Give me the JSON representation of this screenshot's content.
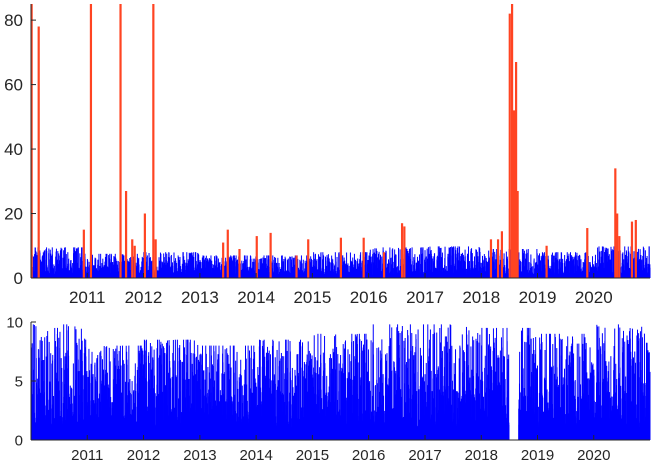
{
  "chart_data": [
    {
      "type": "bar",
      "x_type": "date",
      "xlim": [
        "2010-01-01",
        "2020-12-31"
      ],
      "ylim": [
        0,
        85
      ],
      "yticks": [
        0,
        20,
        40,
        60,
        80
      ],
      "xticks": [
        "2011",
        "2012",
        "2013",
        "2014",
        "2015",
        "2016",
        "2017",
        "2018",
        "2019",
        "2020"
      ],
      "grid": false,
      "baseline_color": "#0000ff",
      "baseline_max": 10,
      "series": [
        {
          "color": "#0000ff",
          "values": [
            [
              [
                "2010-01-01",
                "2010-12-31"
              ],
              9.5
            ],
            [
              [
                "2011-01-01",
                "2011-12-31"
              ],
              7.5
            ],
            [
              [
                "2012-01-01",
                "2012-12-31"
              ],
              8
            ],
            [
              [
                "2013-01-01",
                "2013-12-31"
              ],
              7
            ],
            [
              [
                "2014-01-01",
                "2014-12-31"
              ],
              7
            ],
            [
              [
                "2015-01-01",
                "2015-12-31"
              ],
              8
            ],
            [
              [
                "2016-01-01",
                "2016-12-31"
              ],
              9.5
            ],
            [
              [
                "2017-01-01",
                "2017-12-31"
              ],
              9.8
            ],
            [
              [
                "2018-01-01",
                "2018-12-31"
              ],
              9
            ],
            [
              [
                "2019-01-01",
                "2019-12-31"
              ],
              8
            ],
            [
              [
                "2020-01-01",
                "2020-12-31"
              ],
              9.8
            ]
          ]
        },
        {
          "color": "#ff4422",
          "points": [
            [
              "2010-01-05",
              85
            ],
            [
              "2010-02-20",
              78
            ],
            [
              "2010-12-10",
              15
            ],
            [
              "2011-01-25",
              85
            ],
            [
              "2011-08-05",
              85
            ],
            [
              "2011-09-10",
              27
            ],
            [
              "2011-10-20",
              12
            ],
            [
              "2011-11-05",
              10
            ],
            [
              "2012-01-10",
              20
            ],
            [
              "2012-03-05",
              85
            ],
            [
              "2012-03-20",
              12
            ],
            [
              "2013-06-01",
              11
            ],
            [
              "2013-07-01",
              15
            ],
            [
              "2013-09-15",
              9
            ],
            [
              "2014-01-05",
              13
            ],
            [
              "2014-04-05",
              14
            ],
            [
              "2014-09-20",
              7
            ],
            [
              "2014-12-05",
              12
            ],
            [
              "2015-07-05",
              12.5
            ],
            [
              "2015-11-30",
              12.5
            ],
            [
              "2016-04-10",
              8
            ],
            [
              "2016-08-05",
              17
            ],
            [
              "2016-08-20",
              16
            ],
            [
              "2018-03-05",
              12
            ],
            [
              "2018-04-20",
              12
            ],
            [
              "2018-05-15",
              14.5
            ],
            [
              "2018-07-05",
              82
            ],
            [
              "2018-07-20",
              85
            ],
            [
              "2018-08-01",
              52
            ],
            [
              "2018-08-15",
              67
            ],
            [
              "2018-08-25",
              27
            ],
            [
              "2019-03-01",
              10
            ],
            [
              "2019-11-20",
              15.5
            ],
            [
              "2020-05-20",
              34
            ],
            [
              "2020-06-01",
              20
            ],
            [
              "2020-06-15",
              13
            ],
            [
              "2020-09-05",
              17.5
            ],
            [
              "2020-09-30",
              18
            ]
          ]
        }
      ]
    },
    {
      "type": "bar",
      "x_type": "date",
      "xlim": [
        "2010-01-01",
        "2020-12-31"
      ],
      "ylim": [
        0,
        10
      ],
      "yticks": [
        0,
        5,
        10
      ],
      "xticks": [
        "2011",
        "2012",
        "2013",
        "2014",
        "2015",
        "2016",
        "2017",
        "2018",
        "2019",
        "2020"
      ],
      "grid": false,
      "gap": [
        "2018-07-01",
        "2018-08-31"
      ],
      "series": [
        {
          "color": "#0000ff",
          "values": [
            [
              [
                "2010-01-01",
                "2010-12-31"
              ],
              9.8
            ],
            [
              [
                "2011-01-01",
                "2011-12-31"
              ],
              8
            ],
            [
              [
                "2012-01-01",
                "2012-12-31"
              ],
              8.5
            ],
            [
              [
                "2013-01-01",
                "2013-12-31"
              ],
              8
            ],
            [
              [
                "2014-01-01",
                "2014-12-31"
              ],
              8.5
            ],
            [
              [
                "2015-01-01",
                "2015-12-31"
              ],
              9
            ],
            [
              [
                "2016-01-01",
                "2016-12-31"
              ],
              9.8
            ],
            [
              [
                "2017-01-01",
                "2017-12-31"
              ],
              9.8
            ],
            [
              [
                "2018-01-01",
                "2018-12-31"
              ],
              9.5
            ],
            [
              [
                "2019-01-01",
                "2019-12-31"
              ],
              9
            ],
            [
              [
                "2020-01-01",
                "2020-12-31"
              ],
              9.8
            ]
          ]
        }
      ]
    }
  ]
}
